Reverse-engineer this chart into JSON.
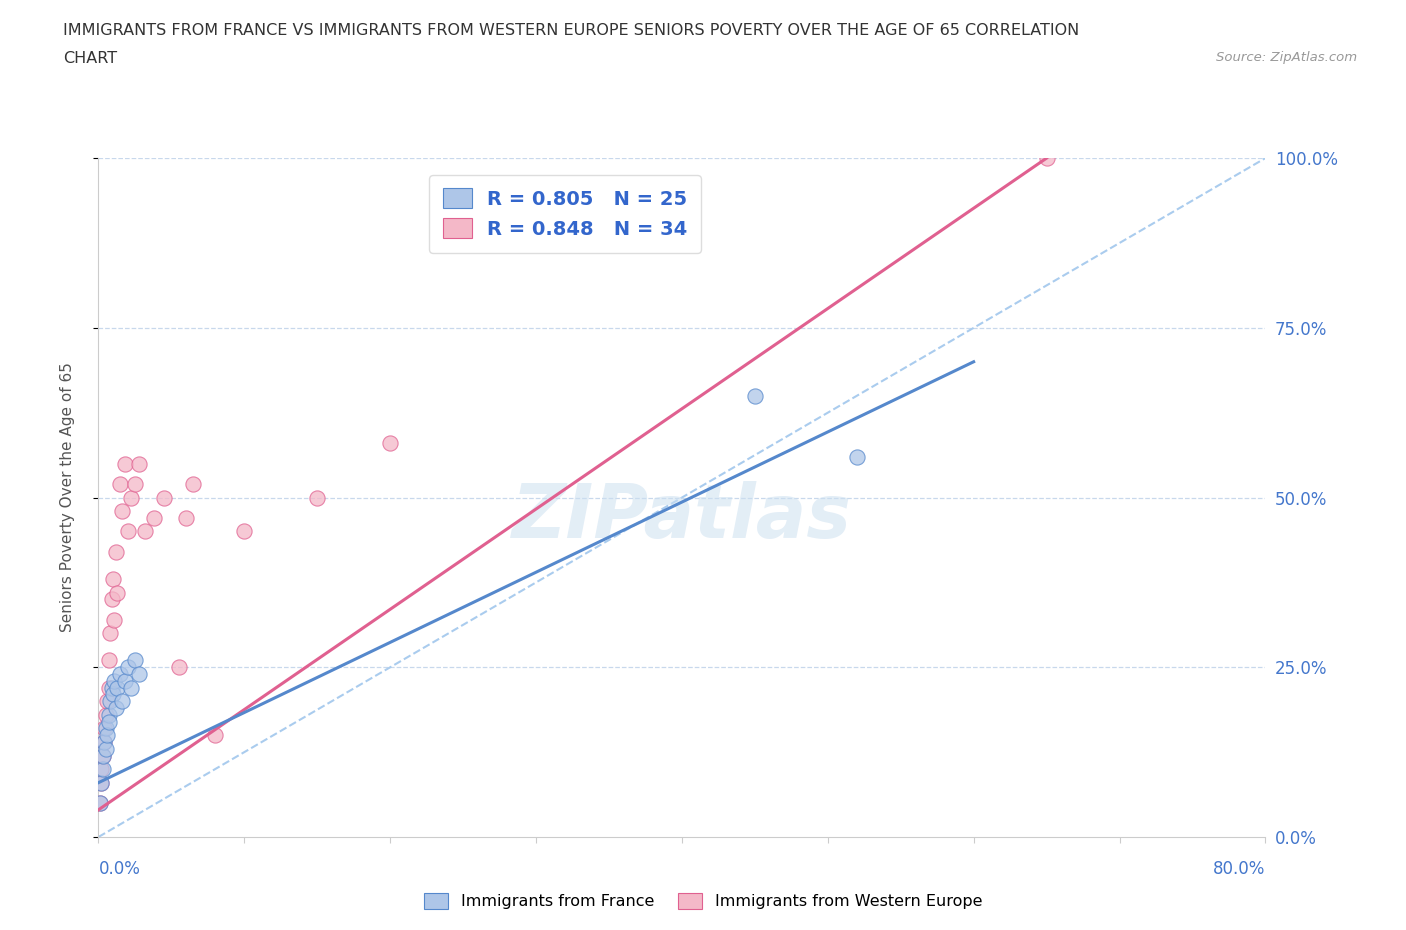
{
  "title_line1": "IMMIGRANTS FROM FRANCE VS IMMIGRANTS FROM WESTERN EUROPE SENIORS POVERTY OVER THE AGE OF 65 CORRELATION",
  "title_line2": "CHART",
  "source_text": "Source: ZipAtlas.com",
  "watermark": "ZIPatlas",
  "ylabel": "Seniors Poverty Over the Age of 65",
  "xlim": [
    0.0,
    0.8
  ],
  "ylim": [
    0.0,
    1.0
  ],
  "ytick_labels": [
    "0.0%",
    "25.0%",
    "50.0%",
    "75.0%",
    "100.0%"
  ],
  "ytick_positions": [
    0.0,
    0.25,
    0.5,
    0.75,
    1.0
  ],
  "series_france": {
    "label": "Immigrants from France",
    "color": "#aec6e8",
    "edge_color": "#5588cc",
    "line_color": "#5588cc",
    "R": 0.805,
    "N": 25,
    "scatter_x": [
      0.001,
      0.002,
      0.003,
      0.003,
      0.004,
      0.005,
      0.005,
      0.006,
      0.007,
      0.007,
      0.008,
      0.009,
      0.01,
      0.011,
      0.012,
      0.013,
      0.015,
      0.016,
      0.018,
      0.02,
      0.022,
      0.025,
      0.028,
      0.45,
      0.52
    ],
    "scatter_y": [
      0.05,
      0.08,
      0.1,
      0.12,
      0.14,
      0.13,
      0.16,
      0.15,
      0.18,
      0.17,
      0.2,
      0.22,
      0.21,
      0.23,
      0.19,
      0.22,
      0.24,
      0.2,
      0.23,
      0.25,
      0.22,
      0.26,
      0.24,
      0.65,
      0.56
    ],
    "line_x": [
      0.0,
      0.6
    ],
    "line_y": [
      0.08,
      0.7
    ]
  },
  "series_western_europe": {
    "label": "Immigrants from Western Europe",
    "color": "#f4b8c8",
    "edge_color": "#e06090",
    "line_color": "#e06090",
    "R": 0.848,
    "N": 34,
    "scatter_x": [
      0.001,
      0.002,
      0.002,
      0.003,
      0.004,
      0.004,
      0.005,
      0.006,
      0.007,
      0.007,
      0.008,
      0.009,
      0.01,
      0.011,
      0.012,
      0.013,
      0.015,
      0.016,
      0.018,
      0.02,
      0.022,
      0.025,
      0.028,
      0.032,
      0.038,
      0.045,
      0.055,
      0.06,
      0.065,
      0.08,
      0.1,
      0.15,
      0.2,
      0.65
    ],
    "scatter_y": [
      0.05,
      0.08,
      0.1,
      0.12,
      0.14,
      0.16,
      0.18,
      0.2,
      0.22,
      0.26,
      0.3,
      0.35,
      0.38,
      0.32,
      0.42,
      0.36,
      0.52,
      0.48,
      0.55,
      0.45,
      0.5,
      0.52,
      0.55,
      0.45,
      0.47,
      0.5,
      0.25,
      0.47,
      0.52,
      0.15,
      0.45,
      0.5,
      0.58,
      1.0
    ],
    "line_x": [
      0.0,
      0.65
    ],
    "line_y": [
      0.04,
      1.0
    ]
  },
  "dashed_line": {
    "x": [
      0.0,
      0.8
    ],
    "y": [
      0.0,
      1.0
    ],
    "color": "#aaccee"
  },
  "legend_text_color": "#3366cc",
  "background_color": "#ffffff",
  "grid_color": "#c8d8ec",
  "axis_color": "#cccccc",
  "title_color": "#333333",
  "source_color": "#999999",
  "ytick_right_color": "#4477cc"
}
